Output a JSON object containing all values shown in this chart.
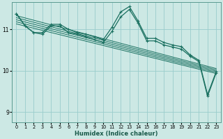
{
  "xlabel": "Humidex (Indice chaleur)",
  "bg_color": "#cce8e4",
  "line_color": "#1a7060",
  "grid_color": "#99cccc",
  "xlim": [
    -0.5,
    23.5
  ],
  "ylim": [
    8.75,
    11.65
  ],
  "yticks": [
    9,
    10,
    11
  ],
  "xticks": [
    0,
    1,
    2,
    3,
    4,
    5,
    6,
    7,
    8,
    9,
    10,
    11,
    12,
    13,
    14,
    15,
    16,
    17,
    18,
    19,
    20,
    21,
    22,
    23
  ],
  "series_upper": [
    11.38,
    11.08,
    10.92,
    10.92,
    11.12,
    11.12,
    11.0,
    10.92,
    10.88,
    10.82,
    10.75,
    11.05,
    11.42,
    11.55,
    11.2,
    10.78,
    10.78,
    10.68,
    10.62,
    10.58,
    10.38,
    10.25,
    9.42,
    9.98
  ],
  "series_lower": [
    11.38,
    11.08,
    10.92,
    10.88,
    11.08,
    11.08,
    10.92,
    10.88,
    10.82,
    10.75,
    10.68,
    10.95,
    11.3,
    11.48,
    11.15,
    10.72,
    10.72,
    10.62,
    10.57,
    10.52,
    10.35,
    10.22,
    9.38,
    9.95
  ],
  "regression_lines": [
    {
      "x0": 0,
      "y0": 11.33,
      "x1": 23,
      "y1": 10.05
    },
    {
      "x0": 0,
      "y0": 11.28,
      "x1": 23,
      "y1": 10.02
    },
    {
      "x0": 0,
      "y0": 11.23,
      "x1": 23,
      "y1": 9.99
    },
    {
      "x0": 0,
      "y0": 11.18,
      "x1": 23,
      "y1": 9.96
    },
    {
      "x0": 0,
      "y0": 11.13,
      "x1": 23,
      "y1": 9.93
    }
  ]
}
